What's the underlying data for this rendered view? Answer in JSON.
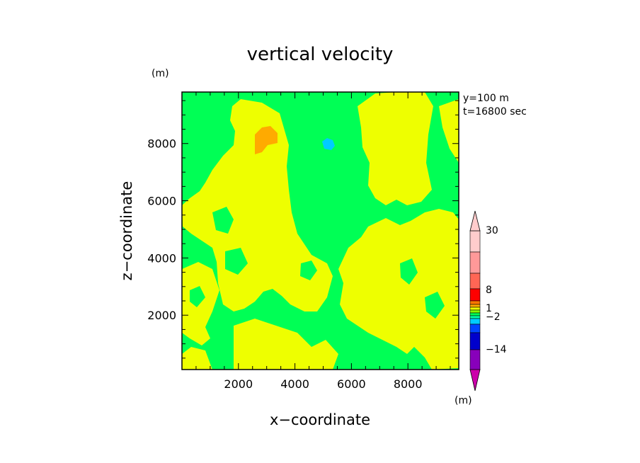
{
  "chart_data": {
    "type": "heatmap",
    "title": "vertical velocity",
    "xlabel": "x−coordinate",
    "ylabel": "z−coordinate",
    "unit_label": "(m)",
    "info_lines": [
      "y=100  m",
      "t=16800 sec"
    ],
    "xlim": [
      0,
      9800
    ],
    "ylim": [
      100,
      9800
    ],
    "x_ticks": [
      2000,
      4000,
      6000,
      8000
    ],
    "y_ticks": [
      2000,
      4000,
      6000,
      8000
    ],
    "x_tick_labels": [
      "2000",
      "4000",
      "6000",
      "8000"
    ],
    "y_tick_labels": [
      "2000",
      "4000",
      "6000",
      "8000"
    ],
    "colorbar": {
      "unit_label": "(m)",
      "labels": [
        "30",
        "8",
        "1",
        "−2",
        "−14"
      ],
      "label_values": [
        30,
        8,
        1,
        -2,
        -14
      ],
      "colors_bottom_to_top": [
        "#cc00aa",
        "#8800bb",
        "#0000cc",
        "#0044ff",
        "#00ccff",
        "#00ffaa",
        "#00ff55",
        "#88ff00",
        "#eeff00",
        "#ffaa00",
        "#ff7700",
        "#ff0000",
        "#ff6655",
        "#ff9999",
        "#ffcccc"
      ],
      "extend": "both"
    },
    "regions": [
      {
        "name": "background",
        "color": "#00ff55"
      },
      {
        "name": "positive",
        "color": "#eeff00"
      },
      {
        "name": "strong-positive",
        "color": "#ffaa00"
      },
      {
        "name": "negative",
        "color": "#00ccff"
      }
    ]
  }
}
